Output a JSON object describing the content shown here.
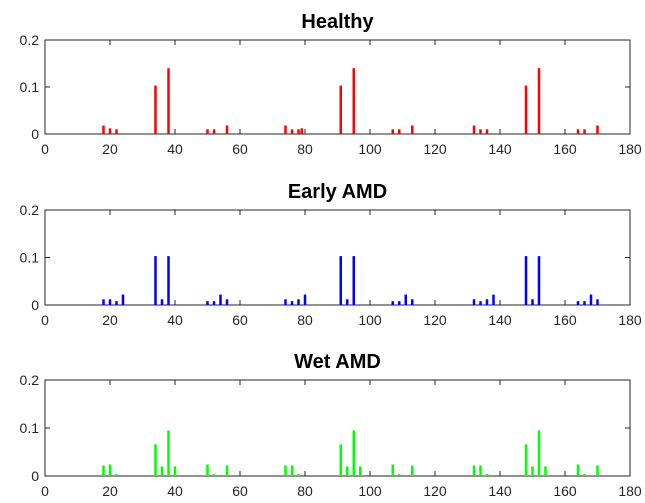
{
  "chart_data": [
    {
      "type": "bar",
      "title": "Healthy",
      "xlabel": "",
      "ylabel": "",
      "xlim": [
        0,
        180
      ],
      "ylim": [
        0,
        0.2
      ],
      "xticks": [
        0,
        20,
        40,
        60,
        80,
        100,
        120,
        140,
        160,
        180
      ],
      "yticks": [
        0,
        0.1,
        0.2
      ],
      "ytick_labels": [
        "0",
        "0.1",
        "0.2"
      ],
      "grid": false,
      "color": "#ff0000",
      "x": [
        18,
        20,
        22,
        34,
        38,
        50,
        52,
        56,
        74,
        76,
        78,
        79,
        91,
        95,
        107,
        109,
        113,
        132,
        134,
        136,
        148,
        152,
        164,
        166,
        170
      ],
      "values": [
        0.018,
        0.012,
        0.01,
        0.103,
        0.14,
        0.01,
        0.01,
        0.018,
        0.018,
        0.01,
        0.01,
        0.012,
        0.103,
        0.14,
        0.01,
        0.01,
        0.018,
        0.018,
        0.01,
        0.01,
        0.103,
        0.14,
        0.01,
        0.01,
        0.018
      ]
    },
    {
      "type": "bar",
      "title": "Early AMD",
      "xlabel": "",
      "ylabel": "",
      "xlim": [
        0,
        180
      ],
      "ylim": [
        0,
        0.2
      ],
      "xticks": [
        0,
        20,
        40,
        60,
        80,
        100,
        120,
        140,
        160,
        180
      ],
      "yticks": [
        0,
        0.1,
        0.2
      ],
      "ytick_labels": [
        "0",
        "0.1",
        "0.2"
      ],
      "grid": false,
      "color": "#0000ff",
      "x": [
        18,
        20,
        22,
        24,
        34,
        36,
        38,
        50,
        52,
        54,
        56,
        74,
        76,
        78,
        80,
        91,
        93,
        95,
        107,
        109,
        111,
        113,
        132,
        134,
        136,
        138,
        148,
        150,
        152,
        164,
        166,
        168,
        170
      ],
      "values": [
        0.012,
        0.012,
        0.008,
        0.022,
        0.103,
        0.012,
        0.103,
        0.008,
        0.008,
        0.022,
        0.012,
        0.012,
        0.008,
        0.012,
        0.022,
        0.103,
        0.012,
        0.103,
        0.008,
        0.008,
        0.022,
        0.012,
        0.012,
        0.008,
        0.012,
        0.022,
        0.103,
        0.012,
        0.103,
        0.008,
        0.008,
        0.022,
        0.012
      ]
    },
    {
      "type": "bar",
      "title": "Wet AMD",
      "xlabel": "",
      "ylabel": "",
      "xlim": [
        0,
        180
      ],
      "ylim": [
        0,
        0.2
      ],
      "xticks": [
        0,
        20,
        40,
        60,
        80,
        100,
        120,
        140,
        160,
        180
      ],
      "yticks": [
        0,
        0.1,
        0.2
      ],
      "ytick_labels": [
        "0",
        "0.1",
        "0.2"
      ],
      "grid": false,
      "color": "#00ff00",
      "x": [
        18,
        20,
        22,
        34,
        36,
        38,
        40,
        50,
        52,
        56,
        74,
        76,
        78,
        91,
        93,
        95,
        97,
        107,
        109,
        113,
        132,
        134,
        136,
        148,
        150,
        152,
        154,
        164,
        166,
        170
      ],
      "values": [
        0.022,
        0.024,
        0.004,
        0.066,
        0.02,
        0.095,
        0.02,
        0.024,
        0.004,
        0.022,
        0.022,
        0.022,
        0.004,
        0.066,
        0.02,
        0.095,
        0.02,
        0.024,
        0.004,
        0.022,
        0.022,
        0.022,
        0.004,
        0.066,
        0.02,
        0.095,
        0.02,
        0.024,
        0.004,
        0.022
      ]
    }
  ]
}
